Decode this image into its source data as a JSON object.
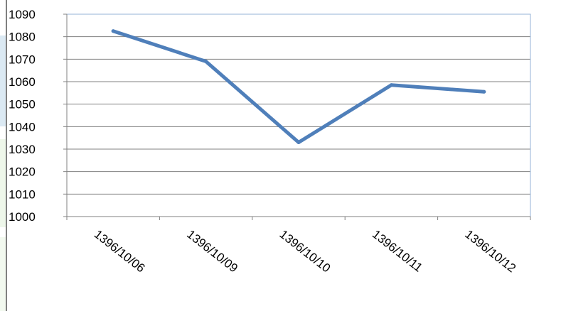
{
  "chart_data": {
    "type": "line",
    "title": "",
    "xlabel": "",
    "ylabel": "",
    "categories": [
      "1396/10/06",
      "1396/10/09",
      "1396/10/10",
      "1396/10/11",
      "1396/10/12"
    ],
    "series": [
      {
        "values": [
          1082.5,
          1069,
          1033,
          1058.5,
          1055.5
        ]
      }
    ],
    "ylim": [
      1000,
      1090
    ],
    "yticks": [
      1000,
      1010,
      1020,
      1030,
      1040,
      1050,
      1060,
      1070,
      1080,
      1090
    ],
    "grid": true,
    "legend": "none",
    "colors": {
      "line": "#4f7fba",
      "grid": "#808080",
      "plot_border": "#95b3d7"
    }
  }
}
